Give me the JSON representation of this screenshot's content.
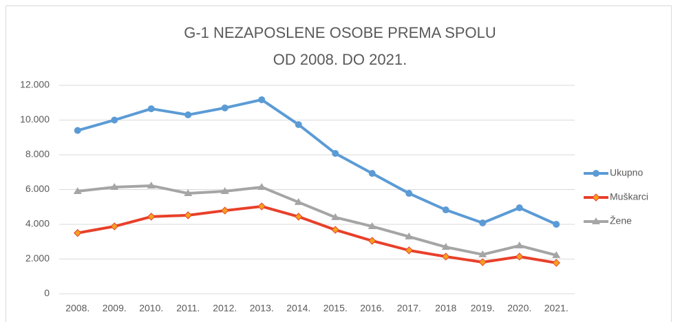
{
  "chart_data": {
    "type": "line",
    "title": [
      "G-1 NEZAPOSLENE OSOBE PREMA SPOLU",
      "OD 2008. DO 2021."
    ],
    "categories": [
      "2008.",
      "2009.",
      "2010.",
      "2011.",
      "2012.",
      "2013.",
      "2014.",
      "2015.",
      "2016.",
      "2017.",
      "2018",
      "2019.",
      "2020.",
      "2021."
    ],
    "series": [
      {
        "name": "Ukupno",
        "color": "#5b9bd5",
        "marker": "circle",
        "values": [
          9400,
          10000,
          10650,
          10300,
          10700,
          11170,
          9740,
          8080,
          6930,
          5780,
          4830,
          4080,
          4950,
          4000
        ]
      },
      {
        "name": "Muškarci",
        "color": "#e8402a",
        "marker": "diamond",
        "marker_color": "#f5a01e",
        "values": [
          3500,
          3880,
          4440,
          4520,
          4790,
          5030,
          4440,
          3680,
          3050,
          2500,
          2140,
          1820,
          2140,
          1780
        ]
      },
      {
        "name": "Žene",
        "color": "#a5a5a5",
        "marker": "triangle",
        "values": [
          5900,
          6140,
          6220,
          5780,
          5900,
          6140,
          5270,
          4400,
          3880,
          3290,
          2690,
          2260,
          2770,
          2220
        ]
      }
    ],
    "ylim": [
      0,
      12000
    ],
    "yticks": [
      0,
      {
        "value": 2000,
        "label": "2.000"
      },
      {
        "value": 4000,
        "label": "4.000"
      },
      {
        "value": 6000,
        "label": "6.000"
      },
      {
        "value": 8000,
        "label": "8.000"
      },
      {
        "value": 10000,
        "label": "10.000"
      },
      {
        "value": 12000,
        "label": "12.000"
      }
    ],
    "grid": true,
    "legend": "right"
  }
}
